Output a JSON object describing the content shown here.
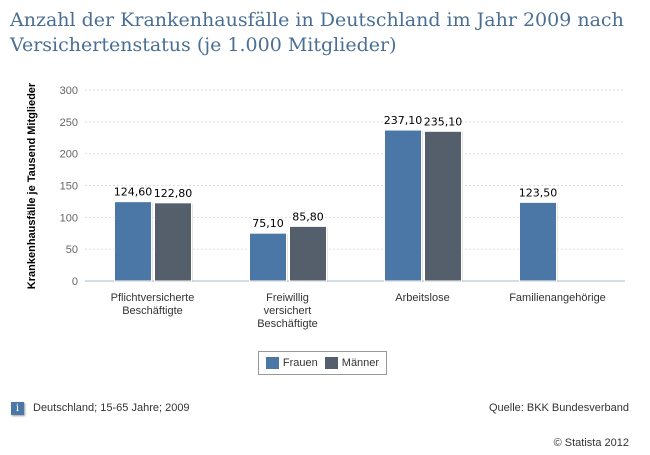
{
  "title": "Anzahl der Krankenhausfälle in Deutschland im Jahr 2009 nach Versichertenstatus (je 1.000 Mitglieder)",
  "chart_data": {
    "type": "bar",
    "title": "Anzahl der Krankenhausfälle in Deutschland im Jahr 2009 nach Versichertenstatus (je 1.000 Mitglieder)",
    "ylabel": "Krankenhausfälle je Tausend Mitglieder",
    "xlabel": "",
    "ylim": [
      0,
      300
    ],
    "yticks": [
      0,
      50,
      100,
      150,
      200,
      250,
      300
    ],
    "grid": true,
    "legend": "bottom",
    "categories": [
      [
        "Pflichtversicherte",
        "Beschäftigte"
      ],
      [
        "Freiwillig",
        "versichert",
        "Beschäftigte"
      ],
      [
        "Arbeitslose"
      ],
      [
        "Familienangehörige"
      ]
    ],
    "series": [
      {
        "name": "Frauen",
        "color": "#4a77a5",
        "values": [
          124.6,
          75.1,
          237.1,
          123.5
        ],
        "labels": [
          "124,60",
          "75,10",
          "237,10",
          "123,50"
        ]
      },
      {
        "name": "Männer",
        "color": "#555f6b",
        "values": [
          122.8,
          85.8,
          235.1,
          null
        ],
        "labels": [
          "122,80",
          "85,80",
          "235,10",
          null
        ]
      }
    ]
  },
  "footer": {
    "info_icon": "i",
    "note": "Deutschland; 15-65 Jahre; 2009",
    "source": "Quelle: BKK Bundesverband",
    "copyright": "© Statista 2012"
  }
}
